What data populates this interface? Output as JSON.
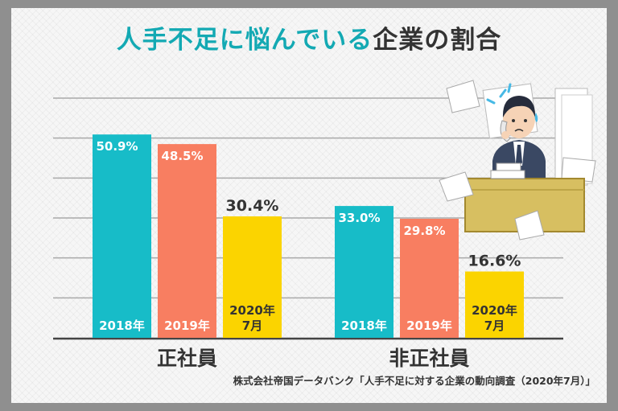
{
  "title": {
    "accent": "人手不足に悩んでいる",
    "rest": "企業の割合"
  },
  "source": "株式会社帝国データバンク「人手不足に対する企業の動向調査（2020年7月）」",
  "colors": {
    "s2018": "#17bcc8",
    "s2019": "#f87e61",
    "s2020": "#fbd400",
    "accent": "#13a9b3"
  },
  "chart_data": {
    "type": "bar",
    "categories": [
      "正社員",
      "非正社員"
    ],
    "ylim": [
      0,
      60
    ],
    "grid": true,
    "series": [
      {
        "name": "2018年",
        "values": [
          50.9,
          33.0
        ],
        "labels": [
          "50.9%",
          "33.0%"
        ],
        "color": "#17bcc8"
      },
      {
        "name": "2019年",
        "values": [
          48.5,
          29.8
        ],
        "labels": [
          "48.5%",
          "29.8%"
        ],
        "color": "#f87e61"
      },
      {
        "name": "2020年\n7月",
        "values": [
          30.4,
          16.6
        ],
        "labels": [
          "30.4%",
          "16.6%"
        ],
        "color": "#fbd400"
      }
    ]
  }
}
